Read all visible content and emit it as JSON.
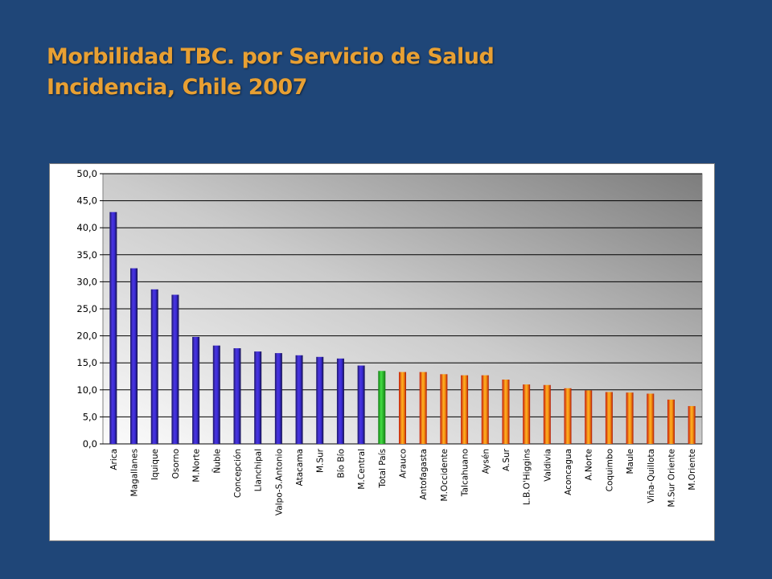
{
  "title": {
    "line1": "Morbilidad TBC. por Servicio de Salud",
    "line2": "Incidencia, Chile 2007"
  },
  "colors": {
    "background": "#1f4678",
    "title": "#e8a033",
    "bar_blue": "#3a2bd6",
    "bar_green": "#2cc52c",
    "bar_orange": "#f08a10"
  },
  "chart_data": {
    "type": "bar",
    "categories": [
      "Arica",
      "Magallanes",
      "Iquique",
      "Osorno",
      "M.Norte",
      "Ñuble",
      "Concepción",
      "Llanchipal",
      "Valpo-S.Antonio",
      "Atacama",
      "M.Sur",
      "Bío Bío",
      "M.Central",
      "Total País",
      "Arauco",
      "Antofagasta",
      "M.Occidente",
      "Talcahuano",
      "Aysén",
      "A.Sur",
      "L.B.O'Higgins",
      "Valdivia",
      "Aconcagua",
      "A.Norte",
      "Coquimbo",
      "Maule",
      "Viña-Quillota",
      "M.Sur Oriente",
      "M.Oriente"
    ],
    "values": [
      42.9,
      32.5,
      28.6,
      27.6,
      19.8,
      18.2,
      17.7,
      17.1,
      16.8,
      16.4,
      16.1,
      15.8,
      14.5,
      13.5,
      13.3,
      13.3,
      12.9,
      12.7,
      12.7,
      11.9,
      11.0,
      10.9,
      10.3,
      9.9,
      9.6,
      9.5,
      9.3,
      8.2,
      7.0
    ],
    "bar_groups": [
      "blue",
      "blue",
      "blue",
      "blue",
      "blue",
      "blue",
      "blue",
      "blue",
      "blue",
      "blue",
      "blue",
      "blue",
      "blue",
      "green",
      "orange",
      "orange",
      "orange",
      "orange",
      "orange",
      "orange",
      "orange",
      "orange",
      "orange",
      "orange",
      "orange",
      "orange",
      "orange",
      "orange",
      "orange"
    ],
    "ylim": [
      0,
      50
    ],
    "y_ticks": [
      "0,0",
      "5,0",
      "10,0",
      "15,0",
      "20,0",
      "25,0",
      "30,0",
      "35,0",
      "40,0",
      "45,0",
      "50,0"
    ],
    "grid": true,
    "legend": "none"
  }
}
